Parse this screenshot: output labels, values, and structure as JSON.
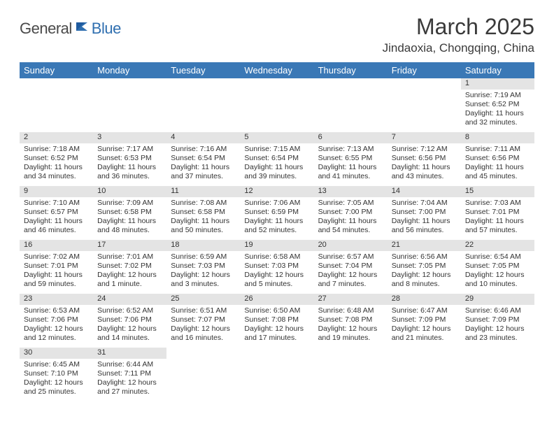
{
  "logo": {
    "text_dark": "General",
    "text_blue": "Blue"
  },
  "title": "March 2025",
  "location": "Jindaoxia, Chongqing, China",
  "colors": {
    "header_bg": "#3a78b6",
    "header_text": "#ffffff",
    "daynum_bg": "#e4e4e4",
    "body_text": "#333333",
    "logo_blue": "#2f6fb0",
    "logo_dark": "#4a4a4a"
  },
  "weekdays": [
    "Sunday",
    "Monday",
    "Tuesday",
    "Wednesday",
    "Thursday",
    "Friday",
    "Saturday"
  ],
  "weeks": [
    [
      null,
      null,
      null,
      null,
      null,
      null,
      {
        "n": "1",
        "sunrise": "Sunrise: 7:19 AM",
        "sunset": "Sunset: 6:52 PM",
        "daylight": "Daylight: 11 hours and 32 minutes."
      }
    ],
    [
      {
        "n": "2",
        "sunrise": "Sunrise: 7:18 AM",
        "sunset": "Sunset: 6:52 PM",
        "daylight": "Daylight: 11 hours and 34 minutes."
      },
      {
        "n": "3",
        "sunrise": "Sunrise: 7:17 AM",
        "sunset": "Sunset: 6:53 PM",
        "daylight": "Daylight: 11 hours and 36 minutes."
      },
      {
        "n": "4",
        "sunrise": "Sunrise: 7:16 AM",
        "sunset": "Sunset: 6:54 PM",
        "daylight": "Daylight: 11 hours and 37 minutes."
      },
      {
        "n": "5",
        "sunrise": "Sunrise: 7:15 AM",
        "sunset": "Sunset: 6:54 PM",
        "daylight": "Daylight: 11 hours and 39 minutes."
      },
      {
        "n": "6",
        "sunrise": "Sunrise: 7:13 AM",
        "sunset": "Sunset: 6:55 PM",
        "daylight": "Daylight: 11 hours and 41 minutes."
      },
      {
        "n": "7",
        "sunrise": "Sunrise: 7:12 AM",
        "sunset": "Sunset: 6:56 PM",
        "daylight": "Daylight: 11 hours and 43 minutes."
      },
      {
        "n": "8",
        "sunrise": "Sunrise: 7:11 AM",
        "sunset": "Sunset: 6:56 PM",
        "daylight": "Daylight: 11 hours and 45 minutes."
      }
    ],
    [
      {
        "n": "9",
        "sunrise": "Sunrise: 7:10 AM",
        "sunset": "Sunset: 6:57 PM",
        "daylight": "Daylight: 11 hours and 46 minutes."
      },
      {
        "n": "10",
        "sunrise": "Sunrise: 7:09 AM",
        "sunset": "Sunset: 6:58 PM",
        "daylight": "Daylight: 11 hours and 48 minutes."
      },
      {
        "n": "11",
        "sunrise": "Sunrise: 7:08 AM",
        "sunset": "Sunset: 6:58 PM",
        "daylight": "Daylight: 11 hours and 50 minutes."
      },
      {
        "n": "12",
        "sunrise": "Sunrise: 7:06 AM",
        "sunset": "Sunset: 6:59 PM",
        "daylight": "Daylight: 11 hours and 52 minutes."
      },
      {
        "n": "13",
        "sunrise": "Sunrise: 7:05 AM",
        "sunset": "Sunset: 7:00 PM",
        "daylight": "Daylight: 11 hours and 54 minutes."
      },
      {
        "n": "14",
        "sunrise": "Sunrise: 7:04 AM",
        "sunset": "Sunset: 7:00 PM",
        "daylight": "Daylight: 11 hours and 56 minutes."
      },
      {
        "n": "15",
        "sunrise": "Sunrise: 7:03 AM",
        "sunset": "Sunset: 7:01 PM",
        "daylight": "Daylight: 11 hours and 57 minutes."
      }
    ],
    [
      {
        "n": "16",
        "sunrise": "Sunrise: 7:02 AM",
        "sunset": "Sunset: 7:01 PM",
        "daylight": "Daylight: 11 hours and 59 minutes."
      },
      {
        "n": "17",
        "sunrise": "Sunrise: 7:01 AM",
        "sunset": "Sunset: 7:02 PM",
        "daylight": "Daylight: 12 hours and 1 minute."
      },
      {
        "n": "18",
        "sunrise": "Sunrise: 6:59 AM",
        "sunset": "Sunset: 7:03 PM",
        "daylight": "Daylight: 12 hours and 3 minutes."
      },
      {
        "n": "19",
        "sunrise": "Sunrise: 6:58 AM",
        "sunset": "Sunset: 7:03 PM",
        "daylight": "Daylight: 12 hours and 5 minutes."
      },
      {
        "n": "20",
        "sunrise": "Sunrise: 6:57 AM",
        "sunset": "Sunset: 7:04 PM",
        "daylight": "Daylight: 12 hours and 7 minutes."
      },
      {
        "n": "21",
        "sunrise": "Sunrise: 6:56 AM",
        "sunset": "Sunset: 7:05 PM",
        "daylight": "Daylight: 12 hours and 8 minutes."
      },
      {
        "n": "22",
        "sunrise": "Sunrise: 6:54 AM",
        "sunset": "Sunset: 7:05 PM",
        "daylight": "Daylight: 12 hours and 10 minutes."
      }
    ],
    [
      {
        "n": "23",
        "sunrise": "Sunrise: 6:53 AM",
        "sunset": "Sunset: 7:06 PM",
        "daylight": "Daylight: 12 hours and 12 minutes."
      },
      {
        "n": "24",
        "sunrise": "Sunrise: 6:52 AM",
        "sunset": "Sunset: 7:06 PM",
        "daylight": "Daylight: 12 hours and 14 minutes."
      },
      {
        "n": "25",
        "sunrise": "Sunrise: 6:51 AM",
        "sunset": "Sunset: 7:07 PM",
        "daylight": "Daylight: 12 hours and 16 minutes."
      },
      {
        "n": "26",
        "sunrise": "Sunrise: 6:50 AM",
        "sunset": "Sunset: 7:08 PM",
        "daylight": "Daylight: 12 hours and 17 minutes."
      },
      {
        "n": "27",
        "sunrise": "Sunrise: 6:48 AM",
        "sunset": "Sunset: 7:08 PM",
        "daylight": "Daylight: 12 hours and 19 minutes."
      },
      {
        "n": "28",
        "sunrise": "Sunrise: 6:47 AM",
        "sunset": "Sunset: 7:09 PM",
        "daylight": "Daylight: 12 hours and 21 minutes."
      },
      {
        "n": "29",
        "sunrise": "Sunrise: 6:46 AM",
        "sunset": "Sunset: 7:09 PM",
        "daylight": "Daylight: 12 hours and 23 minutes."
      }
    ],
    [
      {
        "n": "30",
        "sunrise": "Sunrise: 6:45 AM",
        "sunset": "Sunset: 7:10 PM",
        "daylight": "Daylight: 12 hours and 25 minutes."
      },
      {
        "n": "31",
        "sunrise": "Sunrise: 6:44 AM",
        "sunset": "Sunset: 7:11 PM",
        "daylight": "Daylight: 12 hours and 27 minutes."
      },
      null,
      null,
      null,
      null,
      null
    ]
  ]
}
